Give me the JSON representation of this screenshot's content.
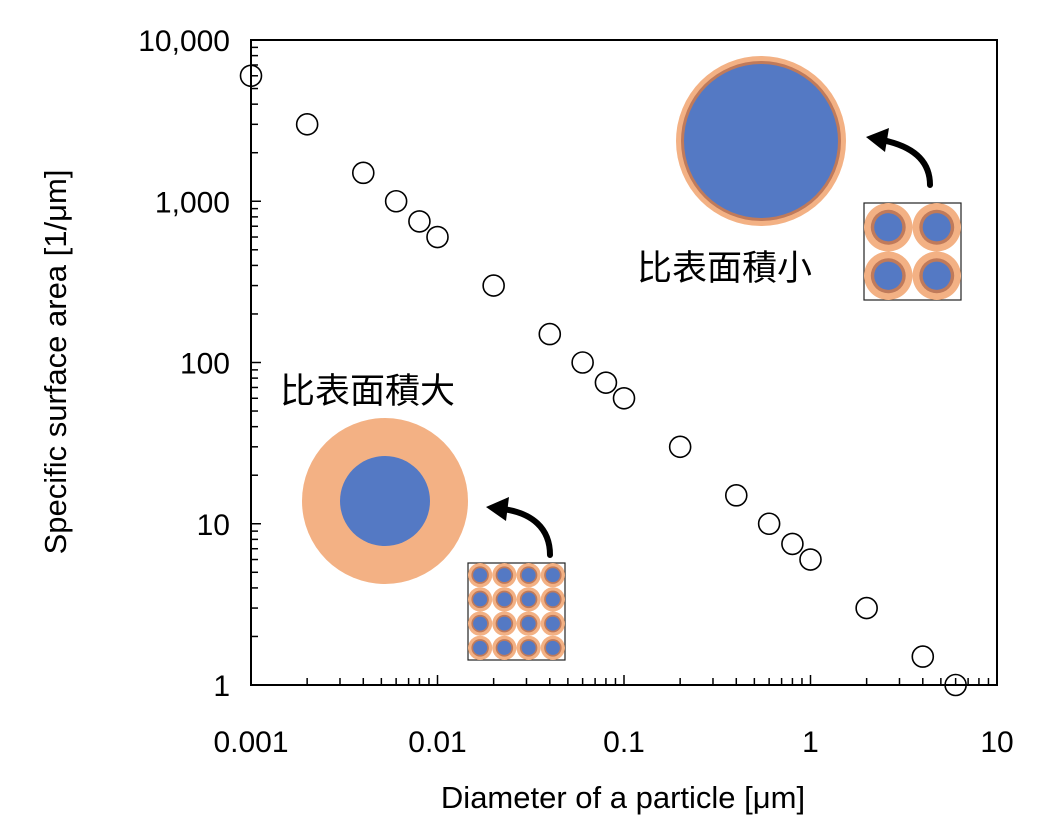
{
  "chart_data": {
    "type": "scatter",
    "xlabel": "Diameter of a particle  [μm]",
    "ylabel": "Specific surface area [1/μm]",
    "x_scale": "log",
    "y_scale": "log",
    "xlim": [
      0.001,
      10
    ],
    "ylim": [
      1,
      10000
    ],
    "x_tick_labels": [
      "0.001",
      "0.01",
      "0.1",
      "1",
      "10"
    ],
    "y_tick_labels": [
      "1",
      "10",
      "100",
      "1,000",
      "10,000"
    ],
    "grid": false,
    "legend": "none",
    "marker": "open-circle",
    "series": [
      {
        "points": [
          {
            "x": 0.001,
            "y": 6000
          },
          {
            "x": 0.002,
            "y": 3000
          },
          {
            "x": 0.004,
            "y": 1500
          },
          {
            "x": 0.006,
            "y": 1000
          },
          {
            "x": 0.008,
            "y": 750
          },
          {
            "x": 0.01,
            "y": 600
          },
          {
            "x": 0.02,
            "y": 300
          },
          {
            "x": 0.04,
            "y": 150
          },
          {
            "x": 0.06,
            "y": 100
          },
          {
            "x": 0.08,
            "y": 75
          },
          {
            "x": 0.1,
            "y": 60
          },
          {
            "x": 0.2,
            "y": 30
          },
          {
            "x": 0.4,
            "y": 15
          },
          {
            "x": 0.6,
            "y": 10
          },
          {
            "x": 0.8,
            "y": 7.5
          },
          {
            "x": 1,
            "y": 6
          },
          {
            "x": 2,
            "y": 3
          },
          {
            "x": 4,
            "y": 1.5
          },
          {
            "x": 6,
            "y": 1
          }
        ]
      }
    ],
    "annotations": [
      {
        "text": "比表面積小"
      },
      {
        "text": "比表面積大"
      }
    ]
  },
  "colors": {
    "particle_core": "#5479c4",
    "particle_shell": "#f3b184",
    "particle_rim": "#c07a5a",
    "marker_stroke": "#000000"
  }
}
